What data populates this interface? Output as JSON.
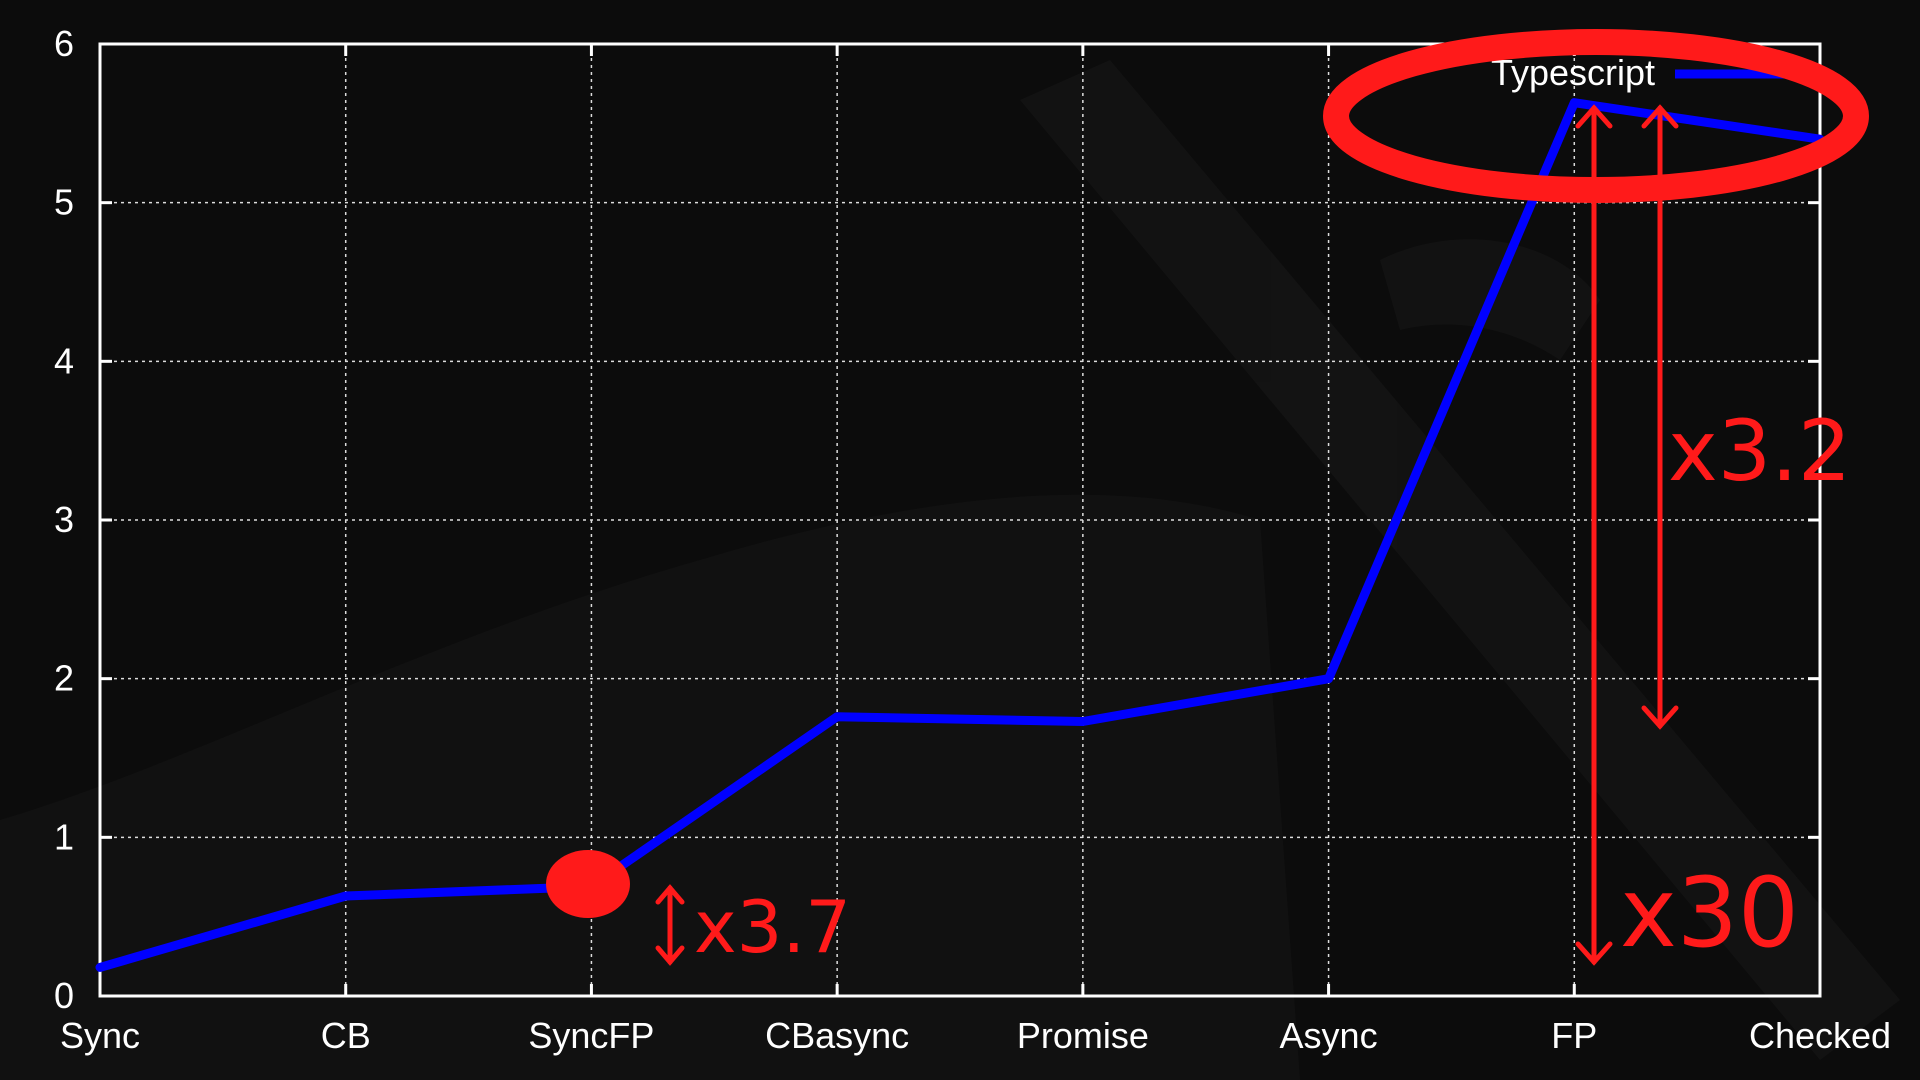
{
  "chart_data": {
    "type": "line",
    "categories": [
      "Sync",
      "CB",
      "SyncFP",
      "CBasync",
      "Promise",
      "Async",
      "FP",
      "Checked"
    ],
    "series": [
      {
        "name": "Typescript",
        "values": [
          0.18,
          0.63,
          0.69,
          1.76,
          1.73,
          2.0,
          5.63,
          5.4
        ]
      }
    ],
    "ylim": [
      0,
      6
    ],
    "yticks": [
      "0",
      "1",
      "2",
      "3",
      "4",
      "5",
      "6"
    ],
    "grid": true,
    "legend_position": "top-right",
    "title": "",
    "xlabel": "",
    "ylabel": "",
    "colors": {
      "series": "#0000ff",
      "annotation": "#ff1a1a",
      "axis": "#ffffff",
      "background": "#0c0c0c"
    },
    "annotations": [
      "x3.7",
      "x3.2",
      "x30"
    ]
  }
}
